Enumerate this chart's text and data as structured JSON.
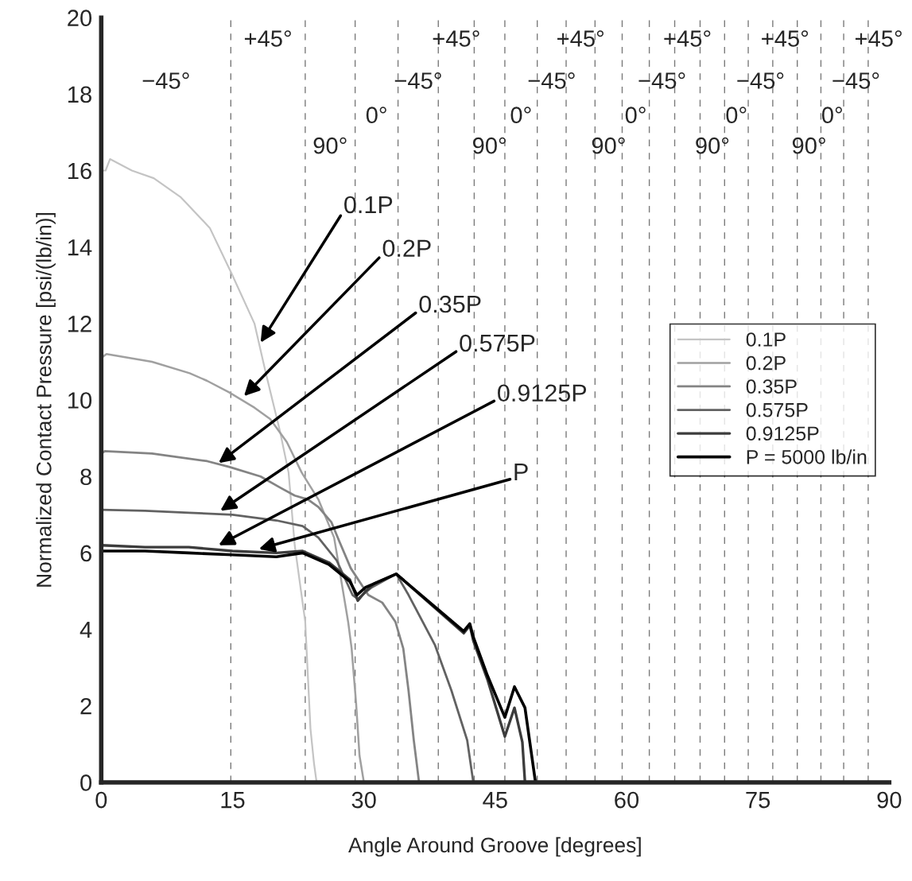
{
  "chart_data": {
    "type": "line",
    "xlabel": "Angle Around Groove [degrees]",
    "ylabel": "Normalized Contact Pressure [psi/(lb/in)]",
    "xlim": [
      0,
      90
    ],
    "xticks": [
      0,
      15,
      30,
      45,
      60,
      75,
      90
    ],
    "ylim": [
      0,
      20
    ],
    "yticks": [
      0,
      2,
      4,
      6,
      8,
      10,
      12,
      14,
      16,
      18,
      20
    ],
    "grid": false,
    "legend": "right",
    "line_style": "solid",
    "marker": "none",
    "series": [
      {
        "name": "0.1P",
        "color": "#c4c4c4",
        "x": [
          0,
          0.5,
          1.0,
          3.5,
          6.0,
          9.1,
          12.4,
          14.9,
          17.5,
          18.8,
          20.4,
          21.4,
          22.1,
          23.3,
          23.9,
          24.3,
          24.6
        ],
        "values": [
          16.0,
          16.0,
          16.3,
          16.0,
          15.8,
          15.3,
          14.5,
          13.3,
          12.0,
          10.7,
          9.2,
          8.1,
          6.2,
          4.2,
          1.4,
          0.5,
          0
        ]
      },
      {
        "name": "0.2P",
        "color": "#a0a0a0",
        "x": [
          0,
          0.6,
          5.8,
          10.1,
          12.1,
          14.6,
          17.5,
          19.3,
          21.2,
          22.9,
          24.8,
          26.6,
          28.2,
          28.6,
          29.1,
          29.5,
          30.0
        ],
        "values": [
          11.1,
          11.2,
          11.0,
          10.7,
          10.5,
          10.2,
          9.8,
          9.5,
          8.9,
          8.1,
          7.4,
          6.4,
          4.2,
          3.5,
          2.1,
          0.7,
          0
        ]
      },
      {
        "name": "0.35P",
        "color": "#848484",
        "x": [
          0,
          0.4,
          5.8,
          12.1,
          14.6,
          18.2,
          20.5,
          22.1,
          23.6,
          24.8,
          26.3,
          27.2,
          28.5,
          30.5,
          32.1,
          33.6,
          34.5,
          35.1,
          35.7,
          36.3
        ],
        "values": [
          8.6,
          8.66,
          8.6,
          8.4,
          8.25,
          8.0,
          7.7,
          7.5,
          7.4,
          7.2,
          6.8,
          6.3,
          5.6,
          4.9,
          4.7,
          4.2,
          3.5,
          2.4,
          1.1,
          0
        ]
      },
      {
        "name": "0.575P",
        "color": "#626262",
        "x": [
          0,
          5.0,
          10.0,
          15.0,
          20.0,
          23.0,
          24.8,
          26.9,
          28.7,
          29.3,
          30.9,
          33.7,
          35.1,
          38.1,
          40.0,
          41.8,
          42.5
        ],
        "values": [
          7.13,
          7.1,
          7.05,
          7.0,
          6.85,
          6.7,
          6.4,
          5.8,
          4.9,
          4.8,
          5.1,
          5.45,
          4.9,
          3.6,
          2.4,
          1.1,
          0
        ]
      },
      {
        "name": "0.9125P",
        "color": "#3c3c3c",
        "x": [
          0,
          5.0,
          10.0,
          15.0,
          20.0,
          23.0,
          26.0,
          28.4,
          29.3,
          30.2,
          31.2,
          33.7,
          41.4,
          42.1,
          42.5,
          44.1,
          46.1,
          47.2,
          48.1,
          48.4
        ],
        "values": [
          6.2,
          6.15,
          6.15,
          6.05,
          6.0,
          6.05,
          5.75,
          5.3,
          4.75,
          5.0,
          5.2,
          5.45,
          3.9,
          4.1,
          3.7,
          2.7,
          1.2,
          1.95,
          1.05,
          0
        ]
      },
      {
        "name": "P = 5000 lb/in",
        "color": "#000000",
        "x": [
          0,
          5.0,
          10.0,
          15.0,
          20.0,
          23.0,
          26.0,
          28.4,
          29.2,
          30.2,
          31.2,
          33.7,
          41.4,
          42.1,
          42.5,
          44.1,
          46.1,
          47.2,
          48.4,
          49.6
        ],
        "values": [
          6.05,
          6.05,
          6.0,
          5.95,
          5.9,
          6.0,
          5.7,
          5.25,
          4.9,
          5.1,
          5.2,
          5.45,
          3.95,
          4.15,
          3.8,
          2.8,
          1.7,
          2.5,
          1.95,
          0
        ]
      }
    ],
    "ref_lines": [
      {
        "axis": "x",
        "value": 14.8,
        "color": "#7a7a7a",
        "line_style": "dashed"
      },
      {
        "axis": "x",
        "value": 23.3,
        "color": "#7a7a7a",
        "line_style": "dashed"
      },
      {
        "axis": "x",
        "value": 29.0,
        "color": "#7a7a7a",
        "line_style": "dashed"
      },
      {
        "axis": "x",
        "value": 33.9,
        "color": "#7a7a7a",
        "line_style": "dashed"
      },
      {
        "axis": "x",
        "value": 38.5,
        "color": "#7a7a7a",
        "line_style": "dashed"
      },
      {
        "axis": "x",
        "value": 42.6,
        "color": "#7a7a7a",
        "line_style": "dashed"
      },
      {
        "axis": "x",
        "value": 46.1,
        "color": "#7a7a7a",
        "line_style": "dashed"
      },
      {
        "axis": "x",
        "value": 49.8,
        "color": "#7a7a7a",
        "line_style": "dashed"
      },
      {
        "axis": "x",
        "value": 53.1,
        "color": "#7a7a7a",
        "line_style": "dashed"
      },
      {
        "axis": "x",
        "value": 56.4,
        "color": "#7a7a7a",
        "line_style": "dashed"
      },
      {
        "axis": "x",
        "value": 59.5,
        "color": "#7a7a7a",
        "line_style": "dashed"
      },
      {
        "axis": "x",
        "value": 62.6,
        "color": "#7a7a7a",
        "line_style": "dashed"
      },
      {
        "axis": "x",
        "value": 65.5,
        "color": "#7a7a7a",
        "line_style": "dashed"
      },
      {
        "axis": "x",
        "value": 68.4,
        "color": "#7a7a7a",
        "line_style": "dashed"
      },
      {
        "axis": "x",
        "value": 71.2,
        "color": "#7a7a7a",
        "line_style": "dashed"
      },
      {
        "axis": "x",
        "value": 73.9,
        "color": "#7a7a7a",
        "line_style": "dashed"
      },
      {
        "axis": "x",
        "value": 76.7,
        "color": "#7a7a7a",
        "line_style": "dashed"
      },
      {
        "axis": "x",
        "value": 79.5,
        "color": "#7a7a7a",
        "line_style": "dashed"
      },
      {
        "axis": "x",
        "value": 82.2,
        "color": "#7a7a7a",
        "line_style": "dashed"
      },
      {
        "axis": "x",
        "value": 84.8,
        "color": "#7a7a7a",
        "line_style": "dashed"
      },
      {
        "axis": "x",
        "value": 87.6,
        "color": "#7a7a7a",
        "line_style": "dashed"
      }
    ],
    "annotations": [
      {
        "text": "0.1P",
        "x": 18.2,
        "y": 11.5
      },
      {
        "text": "0.2P",
        "x": 16.3,
        "y": 10.1
      },
      {
        "text": "0.35P",
        "x": 13.4,
        "y": 8.35
      },
      {
        "text": "0.575P",
        "x": 13.6,
        "y": 7.1
      },
      {
        "text": "0.9125P",
        "x": 13.4,
        "y": 6.2
      },
      {
        "text": "P",
        "x": 18.0,
        "y": 6.1
      },
      "−45°",
      "+45°",
      "90°",
      "0°",
      "−45°",
      "+45°",
      "90°",
      "0°",
      "−45°",
      "+45°",
      "90°",
      "0°",
      "−45°",
      "+45°",
      "90°",
      "0°",
      "−45°",
      "+45°",
      "90°",
      "0°",
      "−45°",
      "+45°"
    ]
  }
}
